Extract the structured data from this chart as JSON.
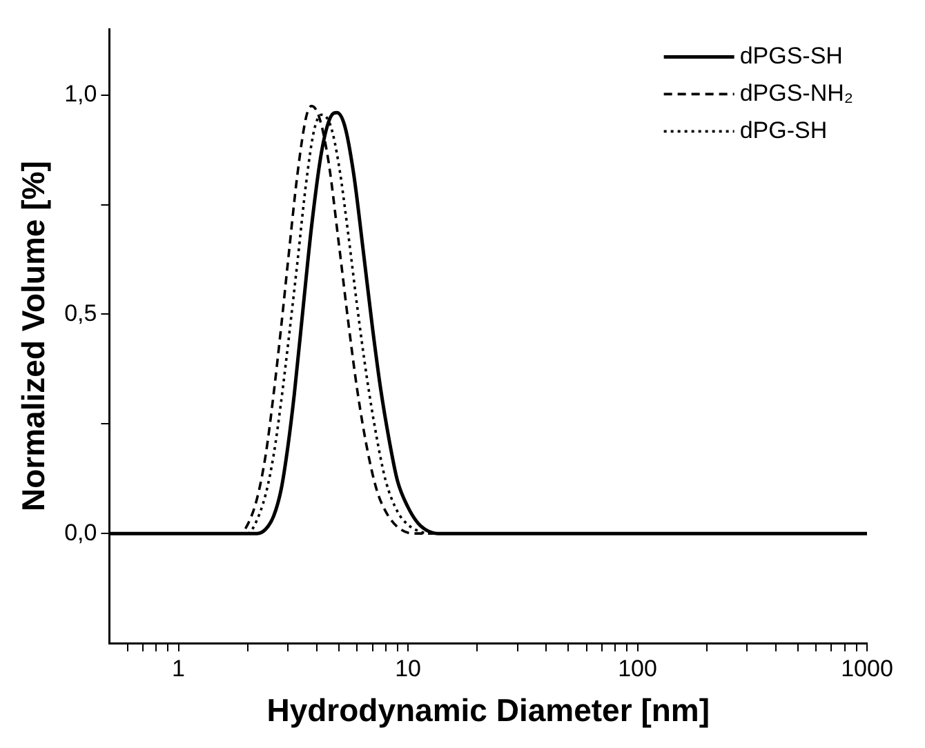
{
  "chart_data": {
    "type": "line",
    "xlabel": "Hydrodynamic Diameter [nm]",
    "ylabel": "Normalized Volume [%]",
    "log": "x",
    "xlim": [
      0.5,
      1000
    ],
    "ylim": [
      -0.25,
      1.15
    ],
    "xticks": [
      {
        "value": 0.6,
        "label": null
      },
      {
        "value": 0.7,
        "label": null
      },
      {
        "value": 0.8,
        "label": null
      },
      {
        "value": 0.9,
        "label": null
      },
      1,
      {
        "value": 2,
        "label": null
      },
      {
        "value": 3,
        "label": null
      },
      {
        "value": 4,
        "label": null
      },
      {
        "value": 5,
        "label": null
      },
      {
        "value": 6,
        "label": null
      },
      {
        "value": 7,
        "label": null
      },
      {
        "value": 8,
        "label": null
      },
      {
        "value": 9,
        "label": null
      },
      10,
      {
        "value": 20,
        "label": null
      },
      {
        "value": 30,
        "label": null
      },
      {
        "value": 40,
        "label": null
      },
      {
        "value": 50,
        "label": null
      },
      {
        "value": 60,
        "label": null
      },
      {
        "value": 70,
        "label": null
      },
      {
        "value": 80,
        "label": null
      },
      {
        "value": 90,
        "label": null
      },
      100,
      {
        "value": 200,
        "label": null
      },
      {
        "value": 300,
        "label": null
      },
      {
        "value": 400,
        "label": null
      },
      {
        "value": 500,
        "label": null
      },
      {
        "value": 600,
        "label": null
      },
      {
        "value": 700,
        "label": null
      },
      {
        "value": 800,
        "label": null
      },
      {
        "value": 900,
        "label": null
      },
      1000
    ],
    "yticks": [
      {
        "value": 0,
        "label": "0,0"
      },
      {
        "value": 0.25,
        "label": null
      },
      {
        "value": 0.5,
        "label": "0,5"
      },
      {
        "value": 0.75,
        "label": null
      },
      {
        "value": 1,
        "label": "1,0"
      }
    ],
    "grid": false,
    "legend": "top right",
    "marker": "none",
    "series": [
      {
        "name": "dPGS-SH",
        "color": "#000000",
        "line_style": "solid",
        "x": [
          0.5,
          2.2,
          2.4,
          2.6,
          2.8,
          3.0,
          3.2,
          3.5,
          3.8,
          4.2,
          4.6,
          4.9,
          5.3,
          5.8,
          6.4,
          7.0,
          7.6,
          8.3,
          9.0,
          10,
          11,
          12,
          13.5,
          1000
        ],
        "values": [
          0,
          0,
          0.01,
          0.04,
          0.1,
          0.2,
          0.32,
          0.52,
          0.7,
          0.87,
          0.95,
          0.96,
          0.93,
          0.82,
          0.64,
          0.47,
          0.33,
          0.21,
          0.12,
          0.06,
          0.025,
          0.008,
          0,
          0
        ]
      },
      {
        "name": "dPGS-NH₂",
        "color": "#000000",
        "line_style": "dashed",
        "x": [
          0.5,
          1.85,
          2.0,
          2.2,
          2.4,
          2.6,
          2.8,
          3.0,
          3.3,
          3.6,
          3.8,
          4.1,
          4.5,
          5.0,
          5.5,
          6.0,
          6.6,
          7.3,
          8.0,
          9,
          10.5,
          1000
        ],
        "values": [
          0,
          0,
          0.02,
          0.08,
          0.18,
          0.32,
          0.47,
          0.62,
          0.82,
          0.95,
          0.975,
          0.95,
          0.85,
          0.66,
          0.48,
          0.33,
          0.2,
          0.1,
          0.05,
          0.015,
          0,
          0
        ]
      },
      {
        "name": "dPG-SH",
        "color": "#000000",
        "line_style": "dotted",
        "x": [
          0.5,
          2.0,
          2.15,
          2.4,
          2.6,
          2.8,
          3.0,
          3.3,
          3.6,
          3.9,
          4.2,
          4.6,
          5.0,
          5.5,
          6.0,
          6.6,
          7.3,
          8.0,
          9,
          10,
          11.5,
          12.5,
          1000
        ],
        "values": [
          0,
          0,
          0.02,
          0.09,
          0.18,
          0.3,
          0.43,
          0.62,
          0.8,
          0.92,
          0.955,
          0.93,
          0.84,
          0.68,
          0.52,
          0.36,
          0.22,
          0.12,
          0.05,
          0.02,
          0.003,
          0,
          0
        ]
      }
    ]
  }
}
